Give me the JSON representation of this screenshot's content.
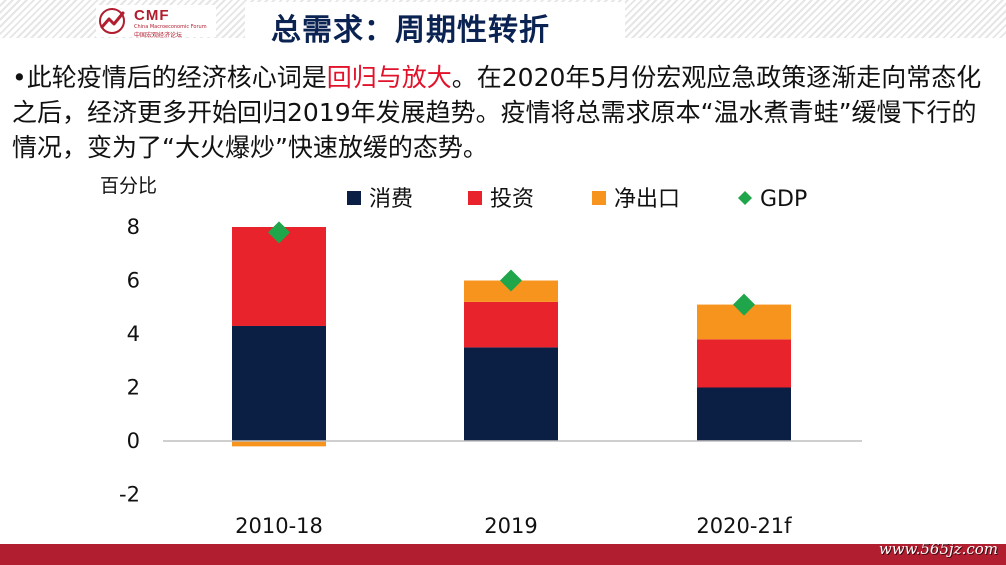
{
  "header": {
    "logo_text": "CMF",
    "logo_sub": "China Macroeconomic Forum",
    "logo_cn": "中国宏观经济论坛",
    "title": "总需求：周期性转折"
  },
  "body": {
    "bullet": "•",
    "part1": "此轮疫情后的经济核心词是",
    "highlight": "回归与放大",
    "part2": "。在2020年5月份宏观应急政策逐渐走向常态化之后，经济更多开始回归2019年发展趋势。疫情将总需求原本“温水煮青蛙”缓慢下行的情况，变为了“大火爆炒”快速放缓的态势。"
  },
  "chart_data": {
    "type": "bar",
    "stacked": true,
    "title": "",
    "ylabel": "百分比",
    "xlabel": "",
    "ylim": [
      -2,
      8
    ],
    "yticks": [
      8,
      6,
      4,
      2,
      0,
      -2
    ],
    "categories": [
      "2010-18",
      "2019",
      "2020-21f"
    ],
    "series": [
      {
        "name": "消费",
        "color": "#0b1f44",
        "values": [
          4.3,
          3.5,
          2.0
        ]
      },
      {
        "name": "投资",
        "color": "#e8232c",
        "values": [
          3.7,
          1.7,
          1.8
        ]
      },
      {
        "name": "净出口",
        "color": "#f7941d",
        "values": [
          -0.2,
          0.8,
          1.3
        ]
      }
    ],
    "markers": {
      "name": "GDP",
      "color": "#1fa64a",
      "values": [
        7.8,
        6.0,
        5.1
      ]
    },
    "legend_position": "top"
  },
  "footer": {
    "watermark": "www.565jz.com",
    "bar_color": "#b01e2f"
  }
}
